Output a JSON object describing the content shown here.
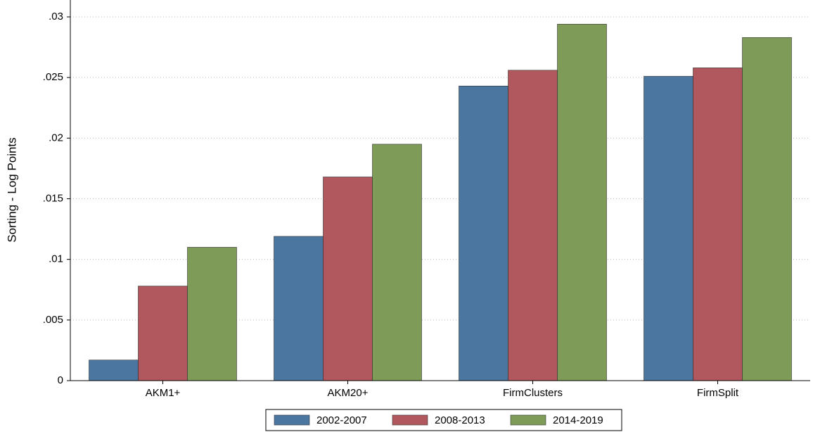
{
  "chart_data": {
    "type": "bar",
    "y_label": "Sorting - Log Points",
    "categories": [
      "AKM1+",
      "AKM20+",
      "FirmClusters",
      "FirmSplit"
    ],
    "series": [
      {
        "name": "2002-2007",
        "color": "#4a76a0",
        "values": [
          0.0017,
          0.0119,
          0.0243,
          0.0251
        ]
      },
      {
        "name": "2008-2013",
        "color": "#b0585e",
        "values": [
          0.0078,
          0.0168,
          0.0256,
          0.0258
        ]
      },
      {
        "name": "2014-2019",
        "color": "#7e9c58",
        "values": [
          0.011,
          0.0195,
          0.0294,
          0.0283
        ]
      }
    ],
    "ylim": [
      0,
      0.03
    ],
    "yticks": [
      0,
      {
        "value": 0.005,
        "label": ".005"
      },
      {
        "value": 0.01,
        "label": ".01"
      },
      {
        "value": 0.015,
        "label": ".015"
      },
      {
        "value": 0.02,
        "label": ".02"
      },
      {
        "value": 0.025,
        "label": ".025"
      },
      {
        "value": 0.03,
        "label": ".03"
      }
    ],
    "grid": true,
    "legend": "bottom"
  }
}
